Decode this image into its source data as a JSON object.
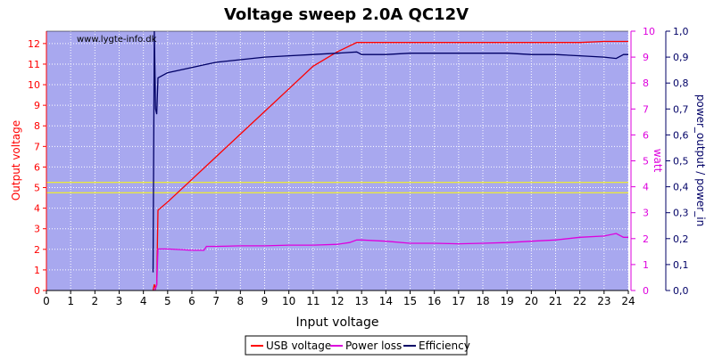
{
  "chart_data": {
    "type": "line",
    "title": "Voltage sweep 2.0A QC12V",
    "watermark": "www.lygte-info.dk",
    "xlabel": "Input voltage",
    "ylabel_left": "Output voltage",
    "ylabel_right1": "watt",
    "ylabel_right2": "power_output / power_in",
    "xlim": [
      0,
      24
    ],
    "ylim_left": [
      0,
      12.6
    ],
    "ylim_watt": [
      0,
      10
    ],
    "ylim_eff": [
      0,
      1.0
    ],
    "x_ticks": [
      "0",
      "1",
      "2",
      "3",
      "4",
      "5",
      "6",
      "7",
      "8",
      "9",
      "10",
      "11",
      "12",
      "13",
      "14",
      "15",
      "16",
      "17",
      "18",
      "19",
      "20",
      "21",
      "22",
      "23",
      "24"
    ],
    "y_left_ticks": [
      "0",
      "1",
      "2",
      "3",
      "4",
      "5",
      "6",
      "7",
      "8",
      "9",
      "10",
      "11",
      "12"
    ],
    "y_watt_ticks": [
      "0",
      "1",
      "2",
      "3",
      "4",
      "5",
      "6",
      "7",
      "8",
      "9",
      "10"
    ],
    "y_eff_ticks": [
      "0,0",
      "0,1",
      "0,2",
      "0,3",
      "0,4",
      "0,5",
      "0,6",
      "0,7",
      "0,8",
      "0,9",
      "1,0"
    ],
    "colors": {
      "plot_bg": "#a8a8ef",
      "usb": "#ff0000",
      "power": "#dd00dd",
      "efficiency": "#000066",
      "ref_lines": "#ffff00",
      "axis_left": "#ff0000",
      "axis_watt": "#dd00dd",
      "axis_eff": "#000066"
    },
    "reference_lines": [
      4.75,
      5.25
    ],
    "series": [
      {
        "name": "USB voltage",
        "axis": "left",
        "points": [
          [
            4.4,
            0
          ],
          [
            4.45,
            0.3
          ],
          [
            4.5,
            0.1
          ],
          [
            4.55,
            0.3
          ],
          [
            4.6,
            3.9
          ],
          [
            5,
            4.3
          ],
          [
            6,
            5.4
          ],
          [
            7,
            6.5
          ],
          [
            8,
            7.6
          ],
          [
            9,
            8.7
          ],
          [
            10,
            9.8
          ],
          [
            11,
            10.9
          ],
          [
            12,
            11.6
          ],
          [
            12.8,
            12.05
          ],
          [
            13,
            12.05
          ],
          [
            14,
            12.05
          ],
          [
            15,
            12.05
          ],
          [
            16,
            12.05
          ],
          [
            17,
            12.05
          ],
          [
            18,
            12.05
          ],
          [
            19,
            12.05
          ],
          [
            20,
            12.05
          ],
          [
            21,
            12.05
          ],
          [
            22,
            12.05
          ],
          [
            23,
            12.1
          ],
          [
            24,
            12.1
          ]
        ]
      },
      {
        "name": "Power loss",
        "axis": "watt",
        "points": [
          [
            4.45,
            0
          ],
          [
            4.55,
            0.2
          ],
          [
            4.6,
            1.6
          ],
          [
            5,
            1.6
          ],
          [
            6,
            1.55
          ],
          [
            6.5,
            1.55
          ],
          [
            6.6,
            1.7
          ],
          [
            7,
            1.7
          ],
          [
            8,
            1.72
          ],
          [
            9,
            1.72
          ],
          [
            10,
            1.75
          ],
          [
            11,
            1.75
          ],
          [
            12,
            1.78
          ],
          [
            12.5,
            1.85
          ],
          [
            12.8,
            1.95
          ],
          [
            13,
            1.95
          ],
          [
            14,
            1.9
          ],
          [
            15,
            1.82
          ],
          [
            16,
            1.82
          ],
          [
            17,
            1.8
          ],
          [
            18,
            1.82
          ],
          [
            19,
            1.85
          ],
          [
            20,
            1.9
          ],
          [
            21,
            1.95
          ],
          [
            22,
            2.05
          ],
          [
            23,
            2.1
          ],
          [
            23.5,
            2.2
          ],
          [
            23.8,
            2.05
          ],
          [
            24,
            2.05
          ]
        ]
      },
      {
        "name": "Efficiency",
        "axis": "eff",
        "points": [
          [
            4.4,
            0.07
          ],
          [
            4.45,
            1.0
          ],
          [
            4.5,
            0.7
          ],
          [
            4.55,
            0.68
          ],
          [
            4.6,
            0.82
          ],
          [
            5,
            0.84
          ],
          [
            6,
            0.86
          ],
          [
            6.5,
            0.87
          ],
          [
            7,
            0.88
          ],
          [
            8,
            0.89
          ],
          [
            9,
            0.9
          ],
          [
            10,
            0.905
          ],
          [
            11,
            0.91
          ],
          [
            12,
            0.915
          ],
          [
            12.8,
            0.92
          ],
          [
            13,
            0.91
          ],
          [
            14,
            0.91
          ],
          [
            15,
            0.915
          ],
          [
            16,
            0.915
          ],
          [
            17,
            0.915
          ],
          [
            18,
            0.915
          ],
          [
            19,
            0.915
          ],
          [
            20,
            0.91
          ],
          [
            21,
            0.91
          ],
          [
            22,
            0.905
          ],
          [
            23,
            0.9
          ],
          [
            23.5,
            0.895
          ],
          [
            23.8,
            0.91
          ],
          [
            24,
            0.91
          ]
        ]
      }
    ],
    "legend": [
      "USB voltage",
      "Power loss",
      "Efficiency"
    ],
    "legend_position": "bottom-center",
    "grid": true
  }
}
